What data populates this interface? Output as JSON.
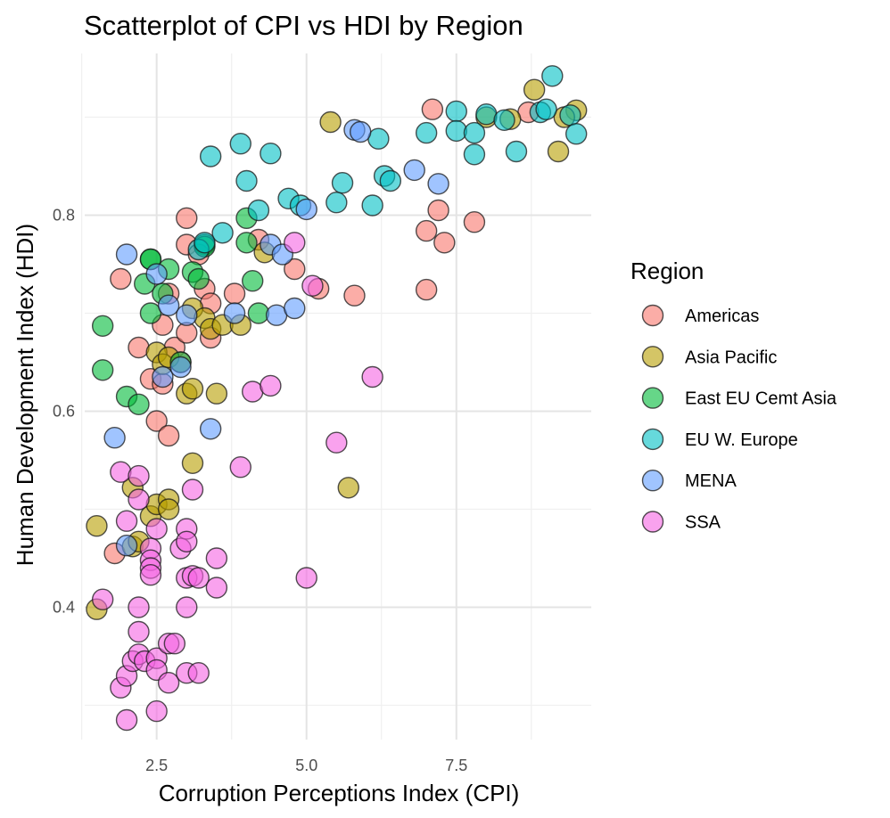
{
  "chart_data": {
    "type": "scatter",
    "title": "Scatterplot of CPI vs HDI by Region",
    "xlabel": "Corruption Perceptions Index (CPI)",
    "ylabel": "Human Development Index (HDI)",
    "xlim": [
      1.3,
      9.75
    ],
    "ylim": [
      0.265,
      0.965
    ],
    "xticks": [
      2.5,
      5.0,
      7.5
    ],
    "xtick_labels": [
      "2.5",
      "5.0",
      "7.5"
    ],
    "xminor": [
      1.25,
      3.75,
      6.25,
      8.75
    ],
    "yticks": [
      0.4,
      0.6,
      0.8
    ],
    "ytick_labels": [
      "0.4",
      "0.6",
      "0.8"
    ],
    "yminor": [
      0.3,
      0.5,
      0.7,
      0.9
    ],
    "grid": true,
    "legend": {
      "title": "Region",
      "position": "right"
    },
    "series": [
      {
        "name": "Americas",
        "color": "#F8766D",
        "points": [
          [
            1.9,
            0.735
          ],
          [
            2.2,
            0.665
          ],
          [
            2.4,
            0.633
          ],
          [
            2.5,
            0.59
          ],
          [
            2.6,
            0.688
          ],
          [
            2.6,
            0.628
          ],
          [
            2.7,
            0.575
          ],
          [
            2.7,
            0.72
          ],
          [
            2.8,
            0.665
          ],
          [
            2.9,
            0.65
          ],
          [
            3.0,
            0.797
          ],
          [
            3.0,
            0.77
          ],
          [
            3.0,
            0.68
          ],
          [
            3.2,
            0.76
          ],
          [
            3.3,
            0.725
          ],
          [
            3.4,
            0.71
          ],
          [
            3.4,
            0.675
          ],
          [
            3.8,
            0.72
          ],
          [
            4.2,
            0.775
          ],
          [
            4.8,
            0.745
          ],
          [
            5.2,
            0.725
          ],
          [
            5.8,
            0.718
          ],
          [
            7.0,
            0.784
          ],
          [
            7.0,
            0.724
          ],
          [
            7.1,
            0.908
          ],
          [
            7.2,
            0.805
          ],
          [
            7.3,
            0.772
          ],
          [
            7.8,
            0.793
          ],
          [
            8.7,
            0.905
          ],
          [
            1.8,
            0.455
          ]
        ]
      },
      {
        "name": "Asia Pacific",
        "color": "#B79F00",
        "points": [
          [
            1.5,
            0.483
          ],
          [
            1.5,
            0.398
          ],
          [
            2.1,
            0.462
          ],
          [
            2.1,
            0.522
          ],
          [
            2.2,
            0.467
          ],
          [
            2.4,
            0.493
          ],
          [
            2.5,
            0.505
          ],
          [
            2.5,
            0.66
          ],
          [
            2.6,
            0.648
          ],
          [
            2.7,
            0.655
          ],
          [
            2.7,
            0.51
          ],
          [
            2.7,
            0.5
          ],
          [
            3.0,
            0.618
          ],
          [
            3.1,
            0.705
          ],
          [
            3.1,
            0.623
          ],
          [
            3.1,
            0.547
          ],
          [
            3.3,
            0.695
          ],
          [
            3.4,
            0.684
          ],
          [
            3.5,
            0.618
          ],
          [
            3.6,
            0.688
          ],
          [
            3.9,
            0.688
          ],
          [
            4.3,
            0.762
          ],
          [
            5.4,
            0.895
          ],
          [
            5.7,
            0.522
          ],
          [
            8.0,
            0.9
          ],
          [
            8.4,
            0.898
          ],
          [
            8.8,
            0.928
          ],
          [
            9.2,
            0.865
          ],
          [
            9.5,
            0.907
          ],
          [
            9.3,
            0.9
          ]
        ]
      },
      {
        "name": "East EU Cemt Asia",
        "color": "#00BA38",
        "points": [
          [
            1.6,
            0.687
          ],
          [
            1.6,
            0.642
          ],
          [
            2.0,
            0.615
          ],
          [
            2.2,
            0.607
          ],
          [
            2.3,
            0.73
          ],
          [
            2.4,
            0.755
          ],
          [
            2.4,
            0.755
          ],
          [
            2.4,
            0.7
          ],
          [
            2.6,
            0.72
          ],
          [
            2.7,
            0.745
          ],
          [
            2.9,
            0.65
          ],
          [
            3.1,
            0.742
          ],
          [
            3.2,
            0.735
          ],
          [
            3.3,
            0.77
          ],
          [
            3.3,
            0.768
          ],
          [
            4.0,
            0.797
          ],
          [
            4.0,
            0.772
          ],
          [
            4.1,
            0.733
          ],
          [
            4.2,
            0.7
          ]
        ]
      },
      {
        "name": "EU W. Europe",
        "color": "#00BFC4",
        "points": [
          [
            3.4,
            0.86
          ],
          [
            3.6,
            0.782
          ],
          [
            3.9,
            0.873
          ],
          [
            4.0,
            0.835
          ],
          [
            4.2,
            0.805
          ],
          [
            4.4,
            0.863
          ],
          [
            4.7,
            0.817
          ],
          [
            4.9,
            0.81
          ],
          [
            5.5,
            0.813
          ],
          [
            5.6,
            0.833
          ],
          [
            6.1,
            0.81
          ],
          [
            6.2,
            0.878
          ],
          [
            6.3,
            0.84
          ],
          [
            6.4,
            0.835
          ],
          [
            7.0,
            0.884
          ],
          [
            7.5,
            0.906
          ],
          [
            7.5,
            0.886
          ],
          [
            7.8,
            0.862
          ],
          [
            7.8,
            0.884
          ],
          [
            8.0,
            0.903
          ],
          [
            8.3,
            0.897
          ],
          [
            8.5,
            0.865
          ],
          [
            8.9,
            0.905
          ],
          [
            9.0,
            0.908
          ],
          [
            9.1,
            0.942
          ],
          [
            9.4,
            0.902
          ],
          [
            9.5,
            0.883
          ],
          [
            3.2,
            0.765
          ],
          [
            3.3,
            0.772
          ]
        ]
      },
      {
        "name": "MENA",
        "color": "#619CFF",
        "points": [
          [
            1.8,
            0.573
          ],
          [
            2.0,
            0.76
          ],
          [
            2.0,
            0.463
          ],
          [
            2.5,
            0.74
          ],
          [
            2.6,
            0.635
          ],
          [
            2.7,
            0.708
          ],
          [
            2.9,
            0.645
          ],
          [
            3.0,
            0.698
          ],
          [
            3.4,
            0.582
          ],
          [
            3.8,
            0.7
          ],
          [
            4.4,
            0.77
          ],
          [
            4.5,
            0.698
          ],
          [
            4.6,
            0.76
          ],
          [
            4.8,
            0.705
          ],
          [
            5.0,
            0.806
          ],
          [
            5.8,
            0.887
          ],
          [
            5.9,
            0.885
          ],
          [
            6.8,
            0.846
          ],
          [
            7.2,
            0.832
          ]
        ]
      },
      {
        "name": "SSA",
        "color": "#F564E3",
        "points": [
          [
            1.6,
            0.408
          ],
          [
            1.9,
            0.538
          ],
          [
            1.9,
            0.318
          ],
          [
            2.0,
            0.488
          ],
          [
            2.0,
            0.33
          ],
          [
            2.0,
            0.285
          ],
          [
            2.1,
            0.345
          ],
          [
            2.2,
            0.534
          ],
          [
            2.2,
            0.51
          ],
          [
            2.2,
            0.4
          ],
          [
            2.2,
            0.375
          ],
          [
            2.2,
            0.352
          ],
          [
            2.3,
            0.345
          ],
          [
            2.4,
            0.46
          ],
          [
            2.4,
            0.448
          ],
          [
            2.4,
            0.44
          ],
          [
            2.4,
            0.433
          ],
          [
            2.5,
            0.48
          ],
          [
            2.5,
            0.348
          ],
          [
            2.5,
            0.336
          ],
          [
            2.5,
            0.294
          ],
          [
            2.7,
            0.363
          ],
          [
            2.7,
            0.323
          ],
          [
            2.8,
            0.363
          ],
          [
            2.9,
            0.46
          ],
          [
            3.0,
            0.48
          ],
          [
            3.0,
            0.467
          ],
          [
            3.0,
            0.43
          ],
          [
            3.0,
            0.4
          ],
          [
            3.0,
            0.333
          ],
          [
            3.1,
            0.52
          ],
          [
            3.1,
            0.432
          ],
          [
            3.2,
            0.43
          ],
          [
            3.2,
            0.333
          ],
          [
            3.5,
            0.45
          ],
          [
            3.5,
            0.42
          ],
          [
            3.9,
            0.543
          ],
          [
            4.1,
            0.62
          ],
          [
            4.4,
            0.626
          ],
          [
            4.8,
            0.772
          ],
          [
            5.0,
            0.43
          ],
          [
            5.1,
            0.728
          ],
          [
            5.5,
            0.568
          ],
          [
            6.1,
            0.635
          ]
        ]
      }
    ]
  }
}
